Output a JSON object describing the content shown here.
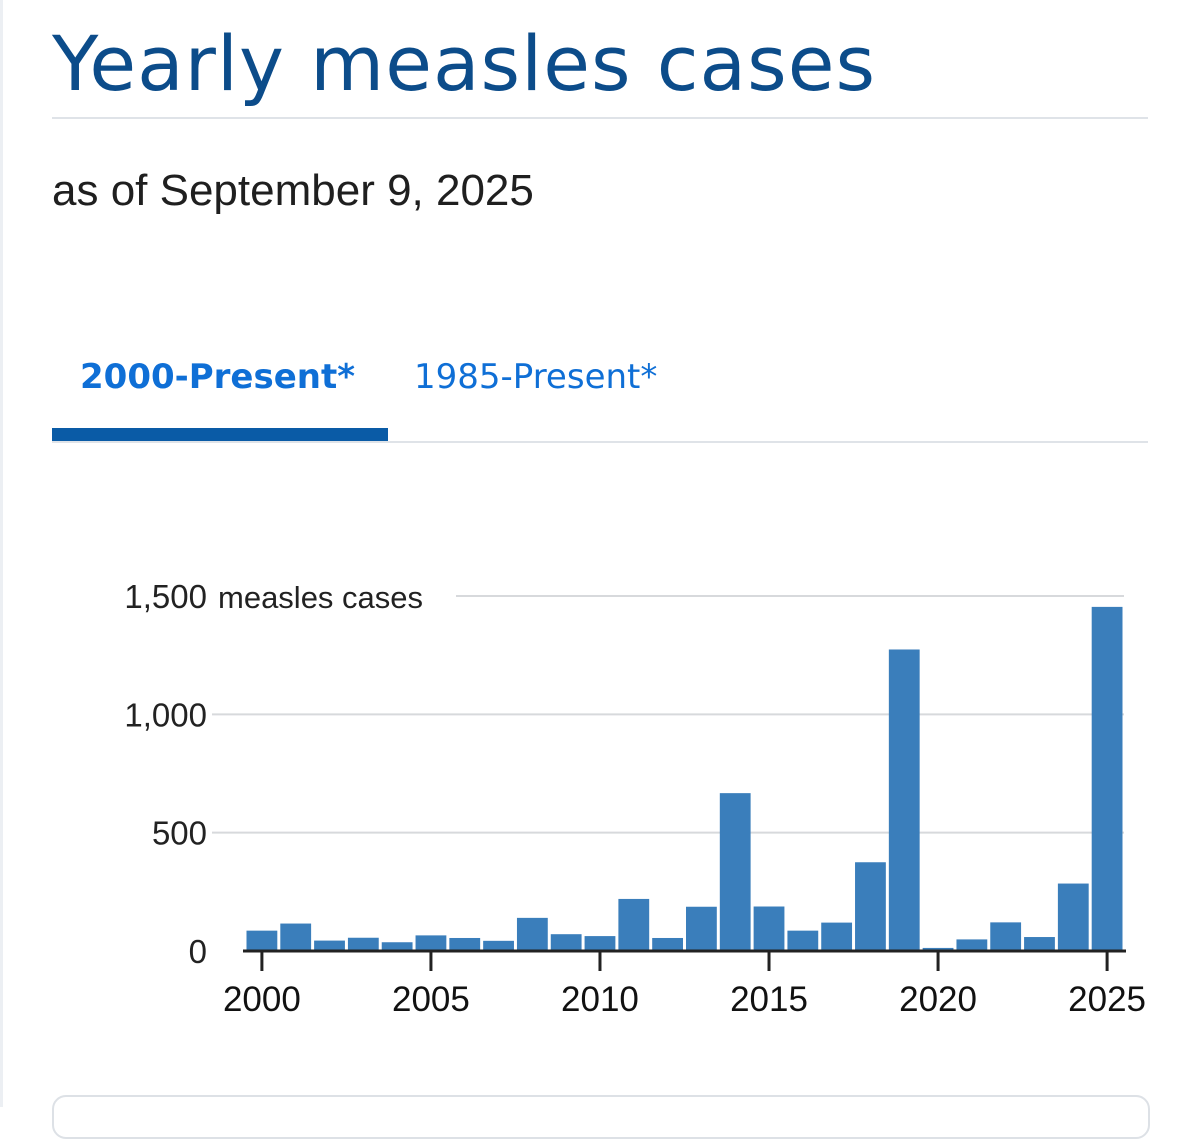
{
  "page": {
    "title": "Yearly measles cases",
    "subtitle": "as of September 9, 2025"
  },
  "tabs": [
    {
      "label": "2000-Present*",
      "active": true
    },
    {
      "label": "1985-Present*",
      "active": false
    }
  ],
  "colors": {
    "title": "#0c4c8a",
    "tab_active": "#0f6fd6",
    "tab_underline": "#0a5ba6",
    "bar": "#3a7ebb",
    "grid": "#d7d9dc",
    "axis": "#222222"
  },
  "chart_data": {
    "type": "bar",
    "title": "",
    "xlabel": "",
    "ylabel": "",
    "y_unit_label": "measles cases",
    "categories": [
      2000,
      2001,
      2002,
      2003,
      2004,
      2005,
      2006,
      2007,
      2008,
      2009,
      2010,
      2011,
      2012,
      2013,
      2014,
      2015,
      2016,
      2017,
      2018,
      2019,
      2020,
      2021,
      2022,
      2023,
      2024,
      2025
    ],
    "values": [
      86,
      116,
      44,
      56,
      37,
      66,
      55,
      43,
      140,
      71,
      63,
      220,
      55,
      187,
      667,
      188,
      86,
      120,
      375,
      1274,
      13,
      49,
      121,
      59,
      285,
      1454
    ],
    "yticks": [
      0,
      500,
      1000,
      1500
    ],
    "ytick_labels": [
      "0",
      "500",
      "1,000",
      "1,500"
    ],
    "xticks": [
      2000,
      2005,
      2010,
      2015,
      2020,
      2025
    ],
    "xtick_labels": [
      "2000",
      "2005",
      "2010",
      "2015",
      "2020",
      "2025"
    ],
    "ylim": [
      0,
      1500
    ],
    "grid": true,
    "legend": "none"
  }
}
